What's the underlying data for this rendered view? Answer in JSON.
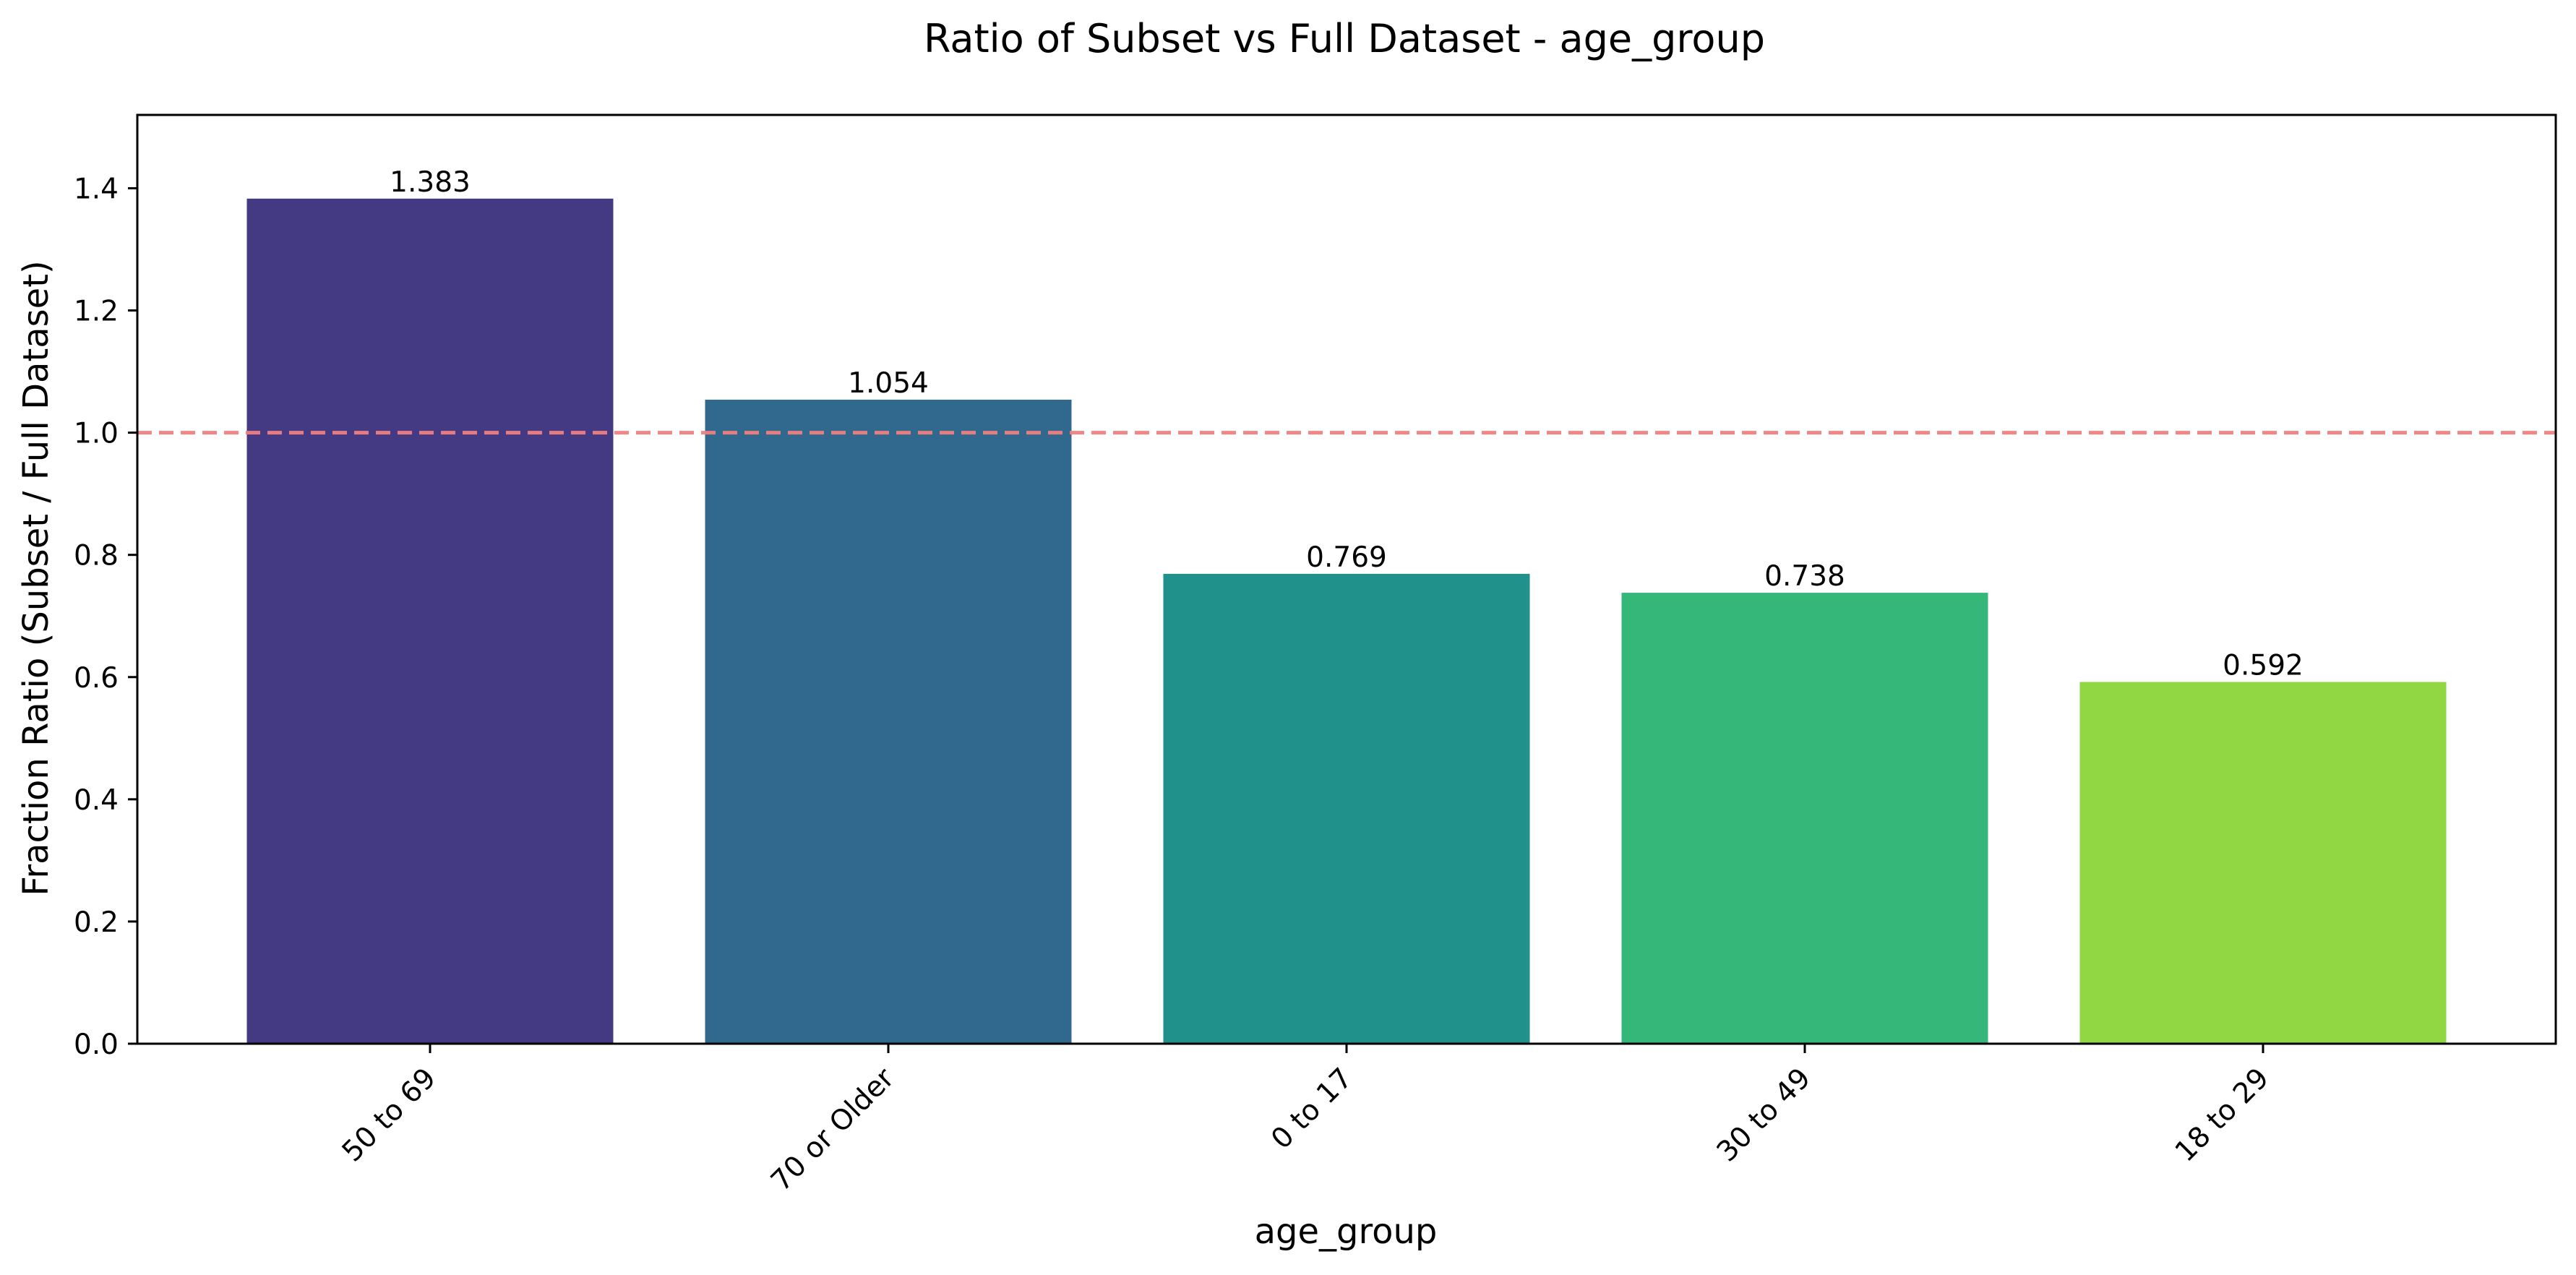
{
  "chart_data": {
    "type": "bar",
    "title": "Ratio of Subset vs Full Dataset - age_group",
    "xlabel": "age_group",
    "ylabel": "Fraction Ratio (Subset / Full Dataset)",
    "categories": [
      "50 to 69",
      "70 or Older",
      "0 to 17",
      "30 to 49",
      "18 to 29"
    ],
    "values": [
      1.383,
      1.054,
      0.769,
      0.738,
      0.592
    ],
    "value_labels": [
      "1.383",
      "1.054",
      "0.769",
      "0.738",
      "0.592"
    ],
    "bar_colors": [
      "#443983",
      "#31688e",
      "#21918c",
      "#35b779",
      "#90d743"
    ],
    "ylim": [
      0,
      1.52
    ],
    "yticks": [
      0.0,
      0.2,
      0.4,
      0.6,
      0.8,
      1.0,
      1.2,
      1.4
    ],
    "ytick_labels": [
      "0.0",
      "0.2",
      "0.4",
      "0.6",
      "0.8",
      "1.0",
      "1.2",
      "1.4"
    ],
    "reference_line": {
      "y": 1.0,
      "color": "#f08080",
      "style": "dashed"
    },
    "grid": false,
    "legend": "none",
    "xtick_rotation": 45
  }
}
